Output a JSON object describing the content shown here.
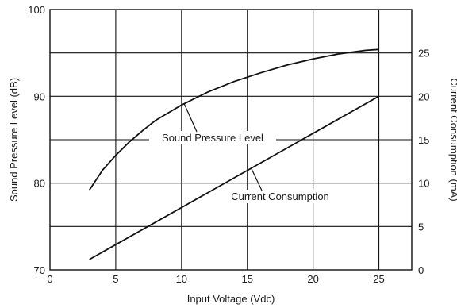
{
  "chart_data": {
    "type": "line",
    "xlabel": "Input Voltage (Vdc)",
    "ylabel": "Sound Pressure Level (dB)",
    "y2label": "Current Consumption (mA)",
    "xlim": [
      0,
      27.5
    ],
    "ylim": [
      70,
      100
    ],
    "y2lim": [
      0,
      30
    ],
    "x_ticks": [
      "0",
      "5",
      "10",
      "15",
      "20",
      "25"
    ],
    "y_ticks": [
      "70",
      "80",
      "90",
      "100"
    ],
    "y2_ticks": [
      "0",
      "5",
      "10",
      "15",
      "20",
      "25"
    ],
    "grid": true,
    "series": [
      {
        "name": "Sound Pressure Level",
        "axis": "left",
        "x": [
          3,
          4,
          5,
          6,
          7,
          8,
          9,
          10,
          12,
          14,
          16,
          18,
          20,
          22,
          24,
          25
        ],
        "y": [
          79.2,
          81.5,
          83.2,
          84.7,
          86.0,
          87.2,
          88.1,
          89.0,
          90.5,
          91.7,
          92.7,
          93.6,
          94.3,
          94.9,
          95.3,
          95.4
        ]
      },
      {
        "name": "Current Consumption",
        "axis": "right",
        "x": [
          3,
          25
        ],
        "y": [
          1.2,
          20.0
        ]
      }
    ],
    "annotations": [
      {
        "text": "Sound Pressure Level",
        "series": "Sound Pressure Level"
      },
      {
        "text": "Current Consumption",
        "series": "Current Consumption"
      }
    ]
  }
}
